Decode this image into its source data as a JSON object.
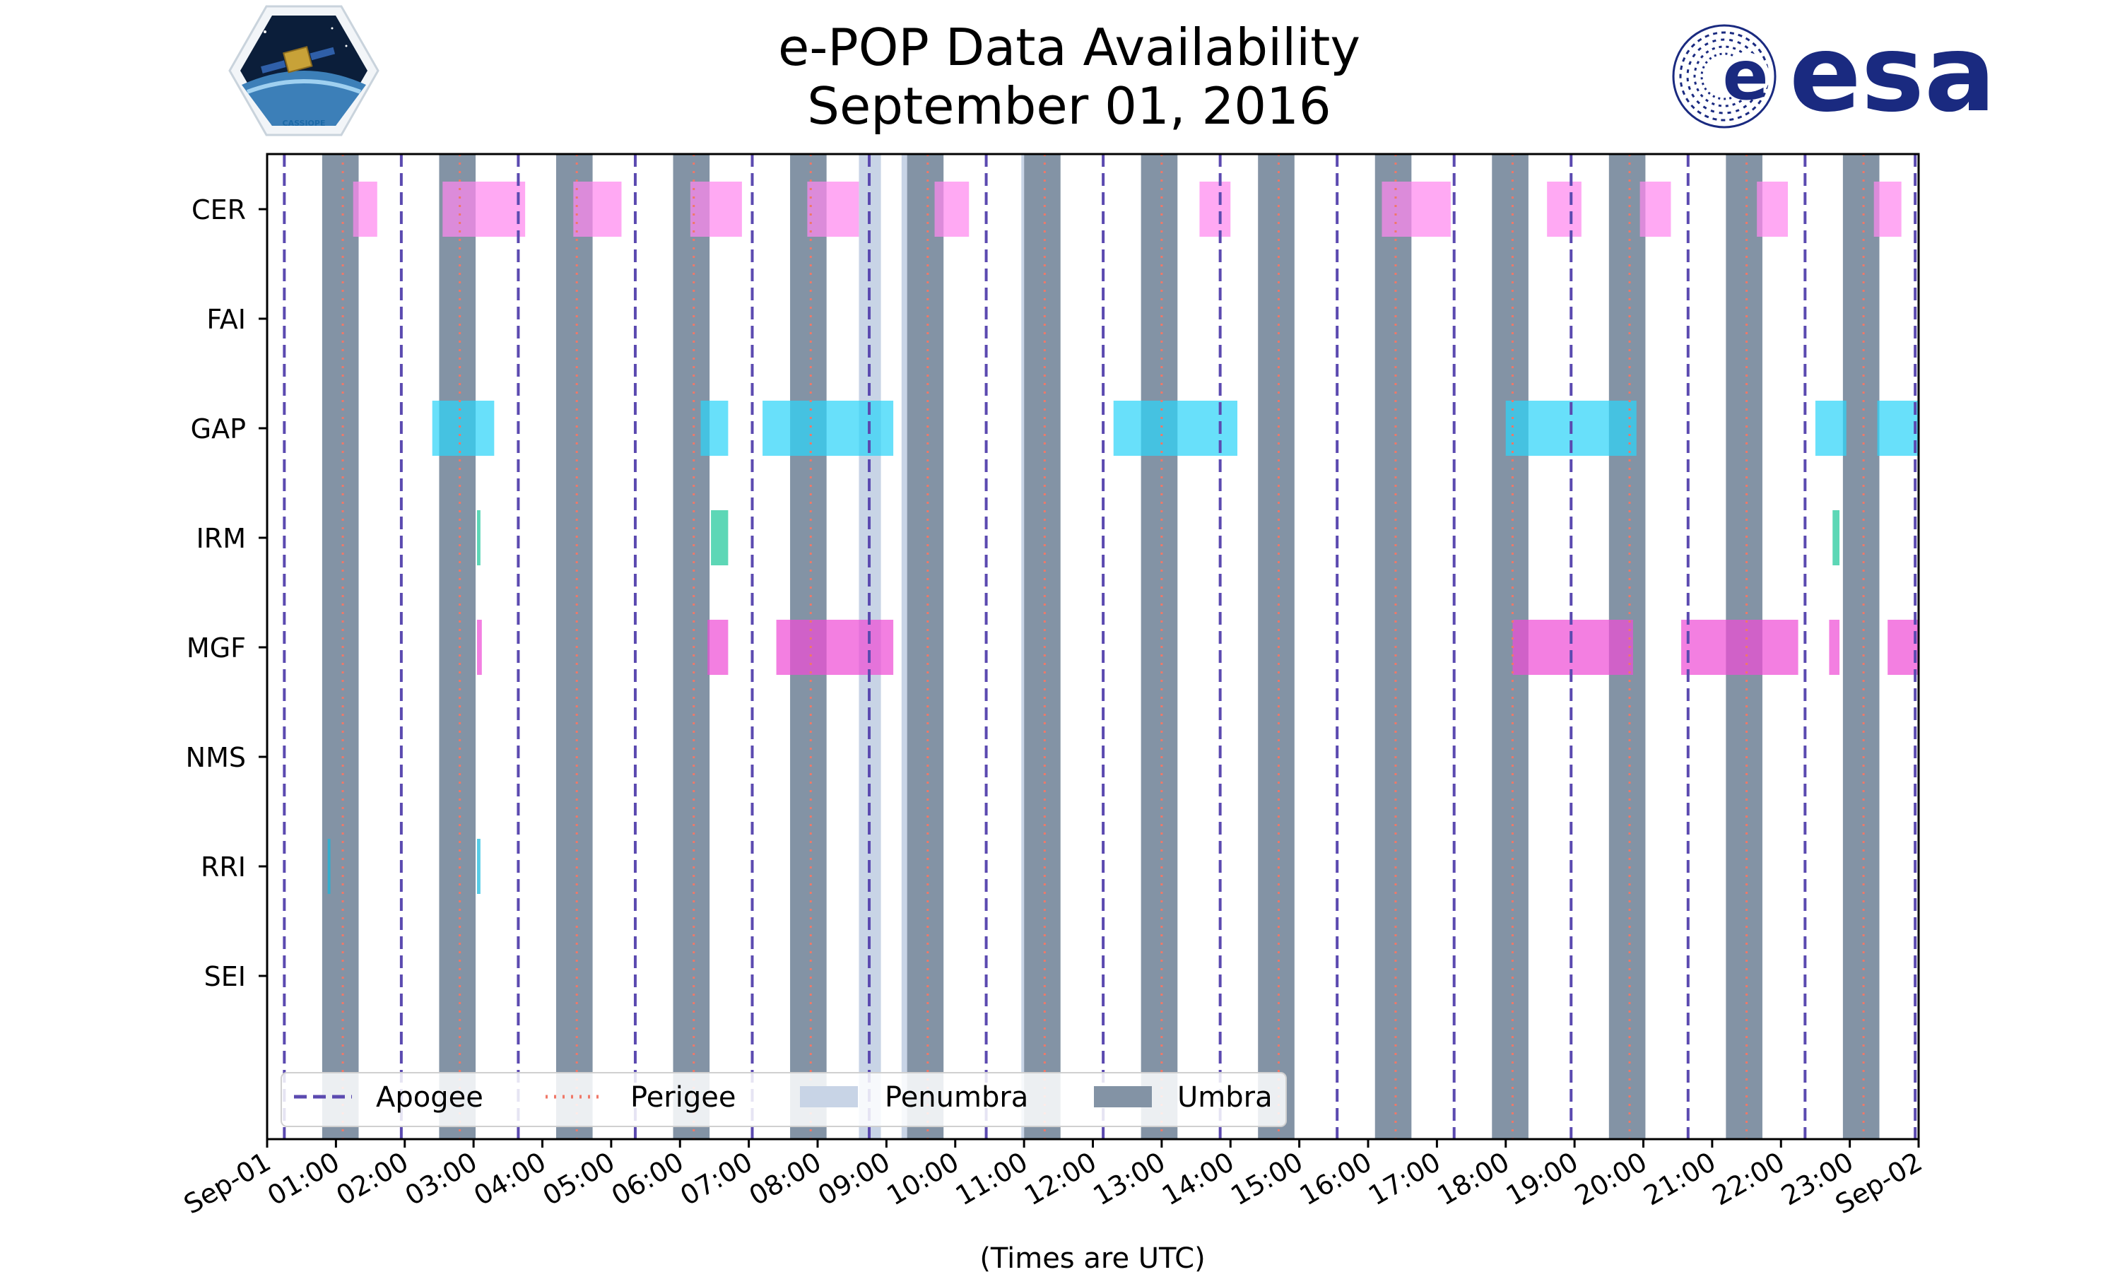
{
  "chart_data": {
    "type": "gantt",
    "title_line1": "e-POP Data Availability",
    "title_line2": "September 01, 2016",
    "xlabel": "(Times are UTC)",
    "xlim_hours": [
      0,
      24
    ],
    "x_tick_labels": [
      "Sep-01",
      "01:00",
      "02:00",
      "03:00",
      "04:00",
      "05:00",
      "06:00",
      "07:00",
      "08:00",
      "09:00",
      "10:00",
      "11:00",
      "12:00",
      "13:00",
      "14:00",
      "15:00",
      "16:00",
      "17:00",
      "18:00",
      "19:00",
      "20:00",
      "21:00",
      "22:00",
      "23:00",
      "Sep-02"
    ],
    "instruments": [
      "CER",
      "FAI",
      "GAP",
      "IRM",
      "MGF",
      "NMS",
      "RRI",
      "SEI"
    ],
    "legend": {
      "apogee": "Apogee",
      "perigee": "Perigee",
      "penumbra": "Penumbra",
      "umbra": "Umbra"
    },
    "colors": {
      "apogee": "#5b4ab0",
      "perigee": "#f07868",
      "penumbra": "#c8d4e6",
      "umbra": "#8393a5",
      "CER": "#ff88ee",
      "GAP": "#2ed4f8",
      "IRM": "#1ec89a",
      "MGF": "#ee4ed6",
      "RRI": "#16b8dc"
    },
    "apogee_hours": [
      0.25,
      1.95,
      3.65,
      5.35,
      7.05,
      8.75,
      10.45,
      12.15,
      13.85,
      15.55,
      17.25,
      18.95,
      20.65,
      22.35,
      23.95
    ],
    "perigee_hours": [
      1.1,
      2.8,
      4.5,
      6.2,
      7.9,
      9.6,
      11.3,
      13.0,
      14.7,
      16.4,
      18.1,
      19.8,
      21.5,
      23.2
    ],
    "umbra_periods": [
      [
        0.8,
        1.33
      ],
      [
        2.5,
        3.03
      ],
      [
        4.2,
        4.73
      ],
      [
        5.9,
        6.43
      ],
      [
        7.6,
        8.13
      ],
      [
        9.3,
        9.83
      ],
      [
        11.0,
        11.53
      ],
      [
        12.7,
        13.23
      ],
      [
        14.4,
        14.93
      ],
      [
        16.1,
        16.63
      ],
      [
        17.8,
        18.33
      ],
      [
        19.5,
        20.03
      ],
      [
        21.2,
        21.73
      ],
      [
        22.9,
        23.43
      ]
    ],
    "penumbra_periods": [
      [
        8.6,
        8.92
      ],
      [
        9.22,
        9.3
      ],
      [
        10.96,
        11.0
      ]
    ],
    "availability": {
      "CER": [
        [
          1.25,
          1.6
        ],
        [
          2.55,
          3.75
        ],
        [
          4.45,
          5.15
        ],
        [
          6.15,
          6.9
        ],
        [
          7.85,
          8.6
        ],
        [
          9.7,
          10.2
        ],
        [
          13.55,
          14.0
        ],
        [
          16.2,
          17.2
        ],
        [
          18.6,
          19.1
        ],
        [
          19.95,
          20.4
        ],
        [
          21.65,
          22.1
        ],
        [
          23.35,
          23.75
        ]
      ],
      "FAI": [],
      "GAP": [
        [
          2.4,
          3.3
        ],
        [
          6.3,
          6.7
        ],
        [
          7.2,
          9.1
        ],
        [
          12.3,
          14.1
        ],
        [
          18.0,
          19.9
        ],
        [
          22.5,
          22.95
        ],
        [
          23.4,
          24.0
        ]
      ],
      "IRM": [
        [
          3.05,
          3.1
        ],
        [
          6.45,
          6.7
        ],
        [
          22.75,
          22.85
        ]
      ],
      "MGF": [
        [
          3.05,
          3.12
        ],
        [
          6.4,
          6.7
        ],
        [
          7.4,
          9.1
        ],
        [
          18.1,
          19.85
        ],
        [
          20.55,
          22.25
        ],
        [
          22.7,
          22.85
        ],
        [
          23.55,
          24.0
        ]
      ],
      "NMS": [],
      "RRI": [
        [
          0.88,
          0.92
        ],
        [
          3.05,
          3.1
        ]
      ],
      "SEI": []
    }
  },
  "logos": {
    "left_badge_text": "CASSIOPE",
    "right_logo_text": "esa"
  }
}
